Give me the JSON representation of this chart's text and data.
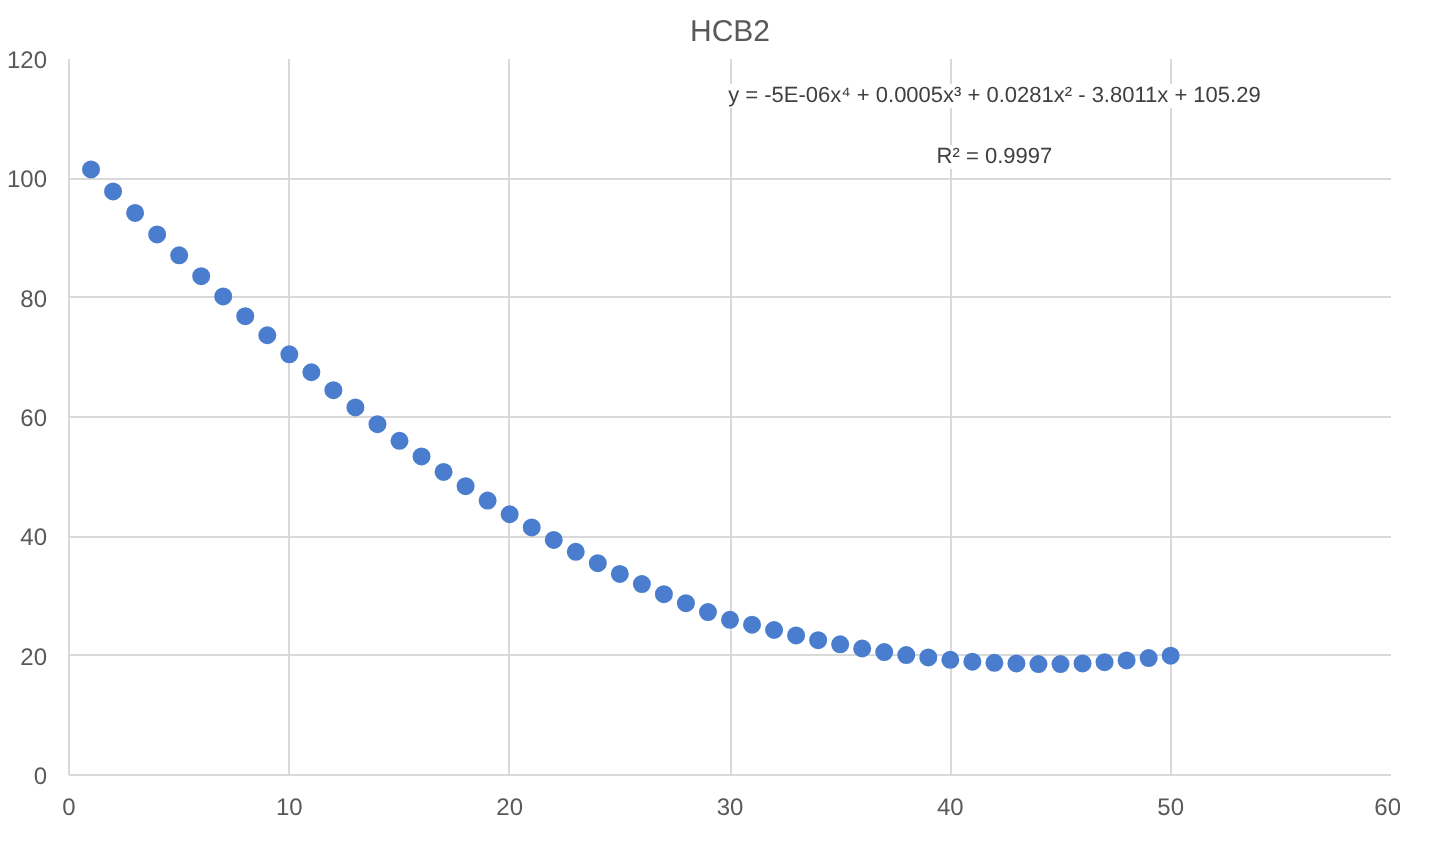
{
  "chart_data": {
    "type": "scatter",
    "title": "HCB2",
    "x": [
      1,
      2,
      3,
      4,
      5,
      6,
      7,
      8,
      9,
      10,
      11,
      12,
      13,
      14,
      15,
      16,
      17,
      18,
      19,
      20,
      21,
      22,
      23,
      24,
      25,
      26,
      27,
      28,
      29,
      30,
      31,
      32,
      33,
      34,
      35,
      36,
      37,
      38,
      39,
      40,
      41,
      42,
      43,
      44,
      45,
      46,
      47,
      48,
      49,
      50
    ],
    "series": [
      {
        "color": "#4a7dce",
        "values": [
          101.5,
          97.8,
          94.2,
          90.6,
          87.1,
          83.6,
          80.2,
          76.9,
          73.7,
          70.5,
          67.5,
          64.5,
          61.6,
          58.8,
          56.0,
          53.4,
          50.8,
          48.4,
          46.0,
          43.7,
          41.5,
          39.4,
          37.4,
          35.5,
          33.7,
          32.0,
          30.3,
          28.8,
          27.3,
          26.0,
          25.2,
          24.3,
          23.4,
          22.6,
          21.9,
          21.2,
          20.6,
          20.1,
          19.7,
          19.3,
          19.0,
          18.8,
          18.7,
          18.6,
          18.6,
          18.7,
          18.9,
          19.2,
          19.6,
          20.0
        ]
      }
    ],
    "xlim": [
      0,
      60
    ],
    "xticks": [
      0,
      10,
      20,
      30,
      40,
      50,
      60
    ],
    "ylim": [
      0,
      120
    ],
    "yticks": [
      0,
      20,
      40,
      60,
      80,
      100,
      120
    ],
    "annotations": [
      "y = -5E-06x⁴ + 0.0005x³ + 0.0281x² - 3.8011x + 105.29",
      "R² = 0.9997"
    ],
    "grid": true,
    "marker": "circle"
  }
}
